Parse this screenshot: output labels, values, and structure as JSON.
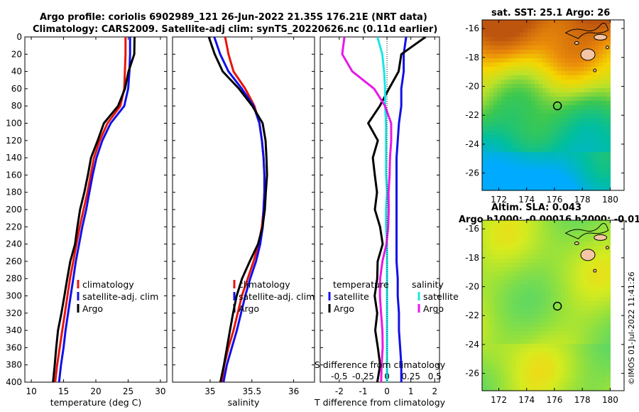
{
  "titles": {
    "line1": "Argo profile: coriolis 6902989_121 26-Jun-2022 21.35S 176.21E (NRT data)",
    "line2": "Climatology: CARS2009. Satellite-adj clim: synTS_20220626.nc (0.11d earlier)",
    "sst_title": "sat. SST: 25.1 Argo: 26",
    "sla_title1": "Altim. SLA: 0.043",
    "sla_title2": "Argo h1000: -0.00016 h2000: -0.01"
  },
  "stamp": "©IMOS 01-Jul-2022 11:41:26",
  "colors": {
    "climatology": "#e8140c",
    "satellite": "#1010e8",
    "argo": "#000000",
    "sat_salinity": "#19e6e6",
    "argo_salinity": "#e619e6"
  },
  "chart_data": [
    {
      "type": "line",
      "panel": "temperature",
      "xlabel": "temperature (deg C)",
      "ylabel": "",
      "xlim": [
        9,
        31
      ],
      "ylim": [
        400,
        0
      ],
      "xticks": [
        10,
        15,
        20,
        25,
        30
      ],
      "yticks": [
        0,
        20,
        40,
        60,
        80,
        100,
        120,
        140,
        160,
        180,
        200,
        220,
        240,
        260,
        280,
        300,
        320,
        340,
        360,
        380,
        400
      ],
      "legend": [
        "climatology",
        "satellite-adj. clim",
        "Argo"
      ],
      "depth": [
        0,
        20,
        40,
        60,
        80,
        100,
        120,
        140,
        160,
        180,
        200,
        220,
        240,
        260,
        280,
        300,
        320,
        340,
        360,
        380,
        400
      ],
      "series": [
        {
          "name": "climatology",
          "values": [
            24.6,
            24.6,
            24.5,
            24.4,
            23.8,
            21.8,
            20.6,
            19.7,
            19.2,
            18.7,
            18.1,
            17.5,
            17.0,
            16.5,
            16.0,
            15.6,
            15.2,
            14.8,
            14.4,
            14.0,
            13.7
          ]
        },
        {
          "name": "satellite-adj. clim",
          "values": [
            25.3,
            25.3,
            25.2,
            25.0,
            24.4,
            22.3,
            21.0,
            20.1,
            19.5,
            19.0,
            18.5,
            17.9,
            17.4,
            16.9,
            16.5,
            16.1,
            15.7,
            15.3,
            15.0,
            14.6,
            14.3
          ]
        },
        {
          "name": "Argo",
          "values": [
            26.0,
            25.9,
            25.0,
            24.5,
            23.5,
            21.3,
            20.3,
            19.2,
            18.7,
            18.2,
            17.6,
            17.2,
            16.8,
            16.0,
            15.5,
            15.1,
            14.7,
            14.2,
            13.9,
            13.6,
            13.3
          ]
        }
      ]
    },
    {
      "type": "line",
      "panel": "salinity",
      "xlabel": "salinity",
      "xlim": [
        34.55,
        36.25
      ],
      "ylim": [
        400,
        0
      ],
      "xticks": [
        35,
        35.5,
        36
      ],
      "legend": [
        "climatology",
        "satellite-adj. clim",
        "Argo"
      ],
      "depth": [
        0,
        20,
        40,
        60,
        80,
        100,
        120,
        140,
        160,
        180,
        200,
        220,
        240,
        260,
        280,
        300,
        320,
        340,
        360,
        380,
        400
      ],
      "series": [
        {
          "name": "climatology",
          "values": [
            35.18,
            35.22,
            35.28,
            35.42,
            35.53,
            35.59,
            35.62,
            35.64,
            35.65,
            35.65,
            35.64,
            35.62,
            35.58,
            35.52,
            35.45,
            35.38,
            35.33,
            35.28,
            35.22,
            35.17,
            35.14
          ]
        },
        {
          "name": "satellite-adj. clim",
          "values": [
            35.05,
            35.12,
            35.22,
            35.38,
            35.52,
            35.59,
            35.62,
            35.64,
            35.65,
            35.65,
            35.64,
            35.63,
            35.6,
            35.55,
            35.48,
            35.42,
            35.37,
            35.32,
            35.26,
            35.2,
            35.16
          ]
        },
        {
          "name": "Argo",
          "values": [
            34.98,
            35.05,
            35.15,
            35.35,
            35.51,
            35.63,
            35.66,
            35.67,
            35.68,
            35.67,
            35.66,
            35.63,
            35.57,
            35.47,
            35.38,
            35.32,
            35.28,
            35.24,
            35.2,
            35.16,
            35.12
          ]
        }
      ]
    },
    {
      "type": "line",
      "panel": "difference",
      "xlabel": "T difference from climatology",
      "xlabel_top": "S difference from climatology",
      "xlim": [
        -2.8,
        2.2
      ],
      "ylim": [
        400,
        0
      ],
      "xticks": [
        -2,
        -1,
        0,
        1,
        2
      ],
      "xticks_top": [
        "-0.5",
        "-0.25",
        "0",
        "0.25",
        "0.5"
      ],
      "legend_titles": [
        "temperature",
        "salinity"
      ],
      "legend": [
        "satellite",
        "Argo",
        "satellite",
        "Argo"
      ],
      "depth": [
        0,
        20,
        40,
        60,
        80,
        100,
        120,
        140,
        160,
        180,
        200,
        220,
        240,
        260,
        280,
        300,
        320,
        340,
        360,
        380,
        400
      ],
      "series": [
        {
          "name": "temperature satellite",
          "values": [
            0.8,
            0.7,
            0.7,
            0.6,
            0.6,
            0.5,
            0.45,
            0.4,
            0.4,
            0.4,
            0.4,
            0.4,
            0.4,
            0.4,
            0.45,
            0.45,
            0.5,
            0.5,
            0.55,
            0.6,
            0.6
          ]
        },
        {
          "name": "temperature Argo",
          "values": [
            1.6,
            0.6,
            0.5,
            0.1,
            -0.3,
            -0.8,
            -0.4,
            -0.6,
            -0.5,
            -0.4,
            -0.5,
            -0.3,
            -0.2,
            -0.4,
            -0.4,
            -0.5,
            -0.4,
            -0.5,
            -0.4,
            -0.3,
            -0.4
          ]
        },
        {
          "name": "salinity satellite",
          "values": [
            -0.1,
            -0.05,
            -0.03,
            -0.02,
            -0.02,
            -0.01,
            -0.01,
            -0.01,
            -0.01,
            0.0,
            -0.01,
            -0.01,
            0.0,
            0.0,
            0.0,
            0.0,
            0.0,
            0.0,
            0.0,
            0.0,
            0.0
          ]
        },
        {
          "name": "salinity Argo",
          "values": [
            -0.45,
            -0.47,
            -0.36,
            -0.13,
            -0.02,
            0.04,
            0.04,
            0.03,
            0.03,
            0.02,
            0.02,
            0.01,
            -0.01,
            -0.05,
            -0.07,
            -0.07,
            -0.06,
            -0.05,
            -0.05,
            -0.06,
            -0.06
          ]
        }
      ]
    },
    {
      "type": "heatmap",
      "panel": "sst_map",
      "title": "sat. SST: 25.1 Argo: 26",
      "xlim": [
        170.8,
        181.0
      ],
      "ylim": [
        -27.2,
        -15.4
      ],
      "xticks": [
        172,
        174,
        176,
        178,
        180
      ],
      "yticks": [
        -16,
        -18,
        -20,
        -22,
        -24,
        -26
      ],
      "argo_lon": 176.21,
      "argo_lat": -21.35
    },
    {
      "type": "heatmap",
      "panel": "sla_map",
      "title": "Altim. SLA: 0.043",
      "xlim": [
        170.8,
        181.0
      ],
      "ylim": [
        -27.2,
        -15.4
      ],
      "xticks": [
        172,
        174,
        176,
        178,
        180
      ],
      "yticks": [
        -16,
        -18,
        -20,
        -22,
        -24,
        -26
      ],
      "argo_lon": 176.21,
      "argo_lat": -21.35
    }
  ]
}
